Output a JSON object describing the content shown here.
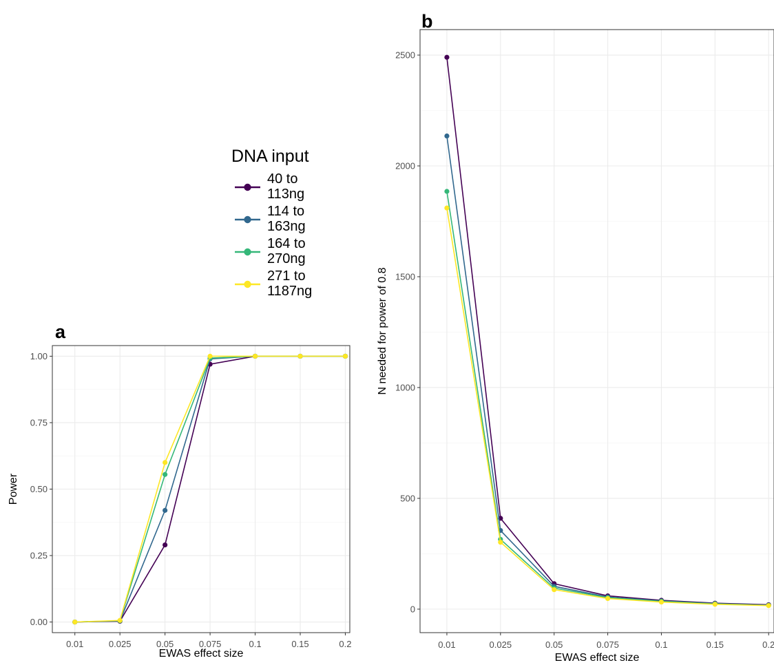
{
  "legend": {
    "title": "DNA input",
    "entries": [
      {
        "lines": [
          "40 to",
          "113ng"
        ],
        "color": "#440154"
      },
      {
        "lines": [
          "114 to",
          "163ng"
        ],
        "color": "#31688e"
      },
      {
        "lines": [
          "164 to",
          "270ng"
        ],
        "color": "#35b779"
      },
      {
        "lines": [
          "271 to",
          "1187ng"
        ],
        "color": "#fde725"
      }
    ]
  },
  "chart_data": [
    {
      "panel": "a",
      "type": "line",
      "title": "",
      "xlabel": "EWAS effect size",
      "ylabel": "Power",
      "categories": [
        "0.01",
        "0.025",
        "0.05",
        "0.075",
        "0.1",
        "0.15",
        "0.2"
      ],
      "ylim": [
        -0.04,
        1.04
      ],
      "yticks": [
        0,
        0.25,
        0.5,
        0.75,
        1
      ],
      "ytick_labels": [
        "0.00",
        "0.25",
        "0.50",
        "0.75",
        "1.00"
      ],
      "grid": true,
      "series": [
        {
          "name": "40 to 113ng",
          "color": "#440154",
          "values": [
            0,
            0.003,
            0.29,
            0.97,
            1,
            1,
            1
          ]
        },
        {
          "name": "114 to 163ng",
          "color": "#31688e",
          "values": [
            0,
            0.004,
            0.42,
            0.99,
            1,
            1,
            1
          ]
        },
        {
          "name": "164 to 270ng",
          "color": "#35b779",
          "values": [
            0,
            0.005,
            0.555,
            0.993,
            1,
            1,
            1
          ]
        },
        {
          "name": "271 to 1187ng",
          "color": "#fde725",
          "values": [
            0,
            0.006,
            0.6,
            1,
            1,
            1,
            1
          ]
        }
      ]
    },
    {
      "panel": "b",
      "type": "line",
      "title": "",
      "xlabel": "EWAS effect size",
      "ylabel": "N needed for power of 0.8",
      "categories": [
        "0.01",
        "0.025",
        "0.05",
        "0.075",
        "0.1",
        "0.15",
        "0.2"
      ],
      "ylim": [
        -106,
        2615
      ],
      "yticks": [
        0,
        500,
        1000,
        1500,
        2000,
        2500
      ],
      "ytick_labels": [
        "0",
        "500",
        "1000",
        "1500",
        "2000",
        "2500"
      ],
      "grid": true,
      "series": [
        {
          "name": "40 to 113ng",
          "color": "#440154",
          "values": [
            2490,
            410,
            115,
            60,
            40,
            27,
            20
          ]
        },
        {
          "name": "114 to 163ng",
          "color": "#31688e",
          "values": [
            2135,
            355,
            103,
            55,
            37,
            25,
            18
          ]
        },
        {
          "name": "164 to 270ng",
          "color": "#35b779",
          "values": [
            1885,
            315,
            95,
            52,
            35,
            24,
            17
          ]
        },
        {
          "name": "271 to 1187ng",
          "color": "#fde725",
          "values": [
            1810,
            302,
            88,
            48,
            32,
            22,
            16
          ]
        }
      ]
    }
  ]
}
